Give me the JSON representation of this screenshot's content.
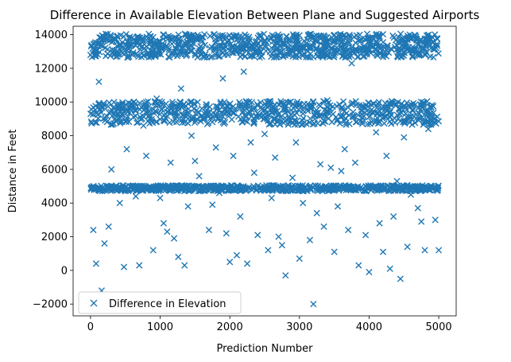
{
  "chart_data": {
    "type": "scatter",
    "title": "Difference in Available Elevation Between Plane and Suggested Airports",
    "xlabel": "Prediction Number",
    "ylabel": "Distance in Feet",
    "xlim": [
      -250,
      5250
    ],
    "ylim": [
      -2700,
      14500
    ],
    "xticks": [
      0,
      1000,
      2000,
      3000,
      4000,
      5000
    ],
    "xtick_labels": [
      "0",
      "1000",
      "2000",
      "3000",
      "4000",
      "5000"
    ],
    "yticks": [
      -2000,
      0,
      2000,
      4000,
      6000,
      8000,
      10000,
      12000,
      14000
    ],
    "ytick_labels": [
      "−2000",
      "0",
      "2000",
      "4000",
      "6000",
      "8000",
      "10000",
      "12000",
      "14000"
    ],
    "grid": false,
    "legend_position": "lower-left",
    "marker": "x",
    "series": [
      {
        "name": "Difference in Elevation",
        "color": "#1f77b4",
        "points_note": "",
        "x": [
          0,
          40,
          80,
          120,
          160,
          200,
          260,
          300,
          350,
          420,
          480,
          520,
          600,
          650,
          700,
          760,
          800,
          900,
          950,
          1000,
          1050,
          1100,
          1150,
          1200,
          1260,
          1300,
          1350,
          1400,
          1450,
          1500,
          1560,
          1600,
          1700,
          1750,
          1800,
          1850,
          1900,
          1950,
          2000,
          2050,
          2100,
          2150,
          2200,
          2250,
          2300,
          2350,
          2400,
          2450,
          2500,
          2550,
          2600,
          2650,
          2700,
          2750,
          2800,
          2850,
          2900,
          2950,
          3000,
          3050,
          3100,
          3150,
          3200,
          3250,
          3300,
          3350,
          3400,
          3450,
          3500,
          3550,
          3600,
          3650,
          3700,
          3750,
          3800,
          3850,
          3900,
          3950,
          4000,
          4050,
          4100,
          4150,
          4200,
          4250,
          4300,
          4350,
          4400,
          4450,
          4500,
          4550,
          4600,
          4650,
          4700,
          4750,
          4800,
          4850,
          4900,
          4950,
          5000
        ],
        "y": [
          12800,
          2400,
          400,
          11200,
          -1200,
          1600,
          2600,
          6000,
          9000,
          4000,
          200,
          7200,
          5000,
          4400,
          300,
          8600,
          6800,
          1200,
          10200,
          4300,
          2800,
          2300,
          6400,
          1900,
          800,
          10800,
          300,
          3800,
          8000,
          6500,
          5600,
          9200,
          2400,
          3900,
          7300,
          4600,
          11400,
          2200,
          500,
          6800,
          900,
          3200,
          11800,
          400,
          7600,
          5800,
          2100,
          9700,
          8100,
          1200,
          4300,
          6700,
          2000,
          1500,
          -300,
          9100,
          5500,
          7600,
          700,
          4000,
          8700,
          1800,
          -2000,
          3400,
          6300,
          2600,
          10100,
          6100,
          1100,
          3800,
          5900,
          7200,
          2400,
          12300,
          6400,
          300,
          9500,
          2100,
          -100,
          4900,
          8200,
          2800,
          1100,
          6800,
          100,
          3200,
          5300,
          -500,
          7900,
          1400,
          4500,
          9800,
          3700,
          2900,
          1200,
          8400,
          5000,
          3000,
          1200
        ]
      }
    ],
    "bands": [
      {
        "name": "",
        "y_center": 13350,
        "y_spread": 700,
        "density": 900
      },
      {
        "name": "",
        "y_center": 9350,
        "y_spread": 700,
        "density": 700
      },
      {
        "name": "",
        "y_center": 4880,
        "y_spread": 170,
        "density": 700
      }
    ]
  }
}
